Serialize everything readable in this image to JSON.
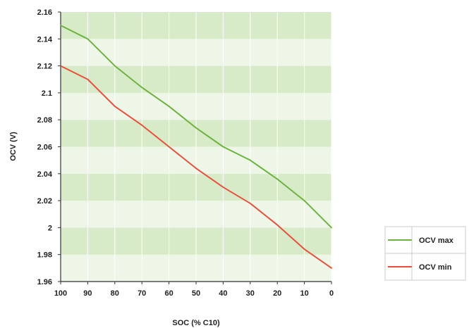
{
  "chart_data": {
    "type": "line",
    "title": "",
    "xlabel": "SOC (% C10)",
    "ylabel": "OCV (V)",
    "x": [
      100,
      90,
      80,
      70,
      60,
      50,
      40,
      30,
      20,
      10,
      0
    ],
    "x_tick_labels": [
      "100",
      "90",
      "80",
      "70",
      "60",
      "50",
      "40",
      "30",
      "20",
      "10",
      "0"
    ],
    "y_tick_labels": [
      "1.96",
      "1.98",
      "2",
      "2.02",
      "2.04",
      "2.06",
      "2.08",
      "2.1",
      "2.12",
      "2.14",
      "2.16"
    ],
    "y_ticks": [
      1.96,
      1.98,
      2.0,
      2.02,
      2.04,
      2.06,
      2.08,
      2.1,
      2.12,
      2.14,
      2.16
    ],
    "xlim": [
      100,
      0
    ],
    "ylim": [
      1.96,
      2.16
    ],
    "grid": "horizontal bands",
    "legend_position": "right",
    "series": [
      {
        "name": "OCV max",
        "color": "#6db33f",
        "values": [
          2.15,
          2.14,
          2.12,
          2.104,
          2.09,
          2.074,
          2.06,
          2.05,
          2.036,
          2.02,
          2.0
        ]
      },
      {
        "name": "OCV min",
        "color": "#e8503c",
        "values": [
          2.12,
          2.11,
          2.09,
          2.076,
          2.06,
          2.044,
          2.03,
          2.018,
          2.002,
          1.984,
          1.97
        ]
      }
    ],
    "colors": {
      "band_dark": "#d8ebc9",
      "band_light": "#eef6e7",
      "axis": "#333333",
      "gridline": "#ffffff"
    }
  }
}
